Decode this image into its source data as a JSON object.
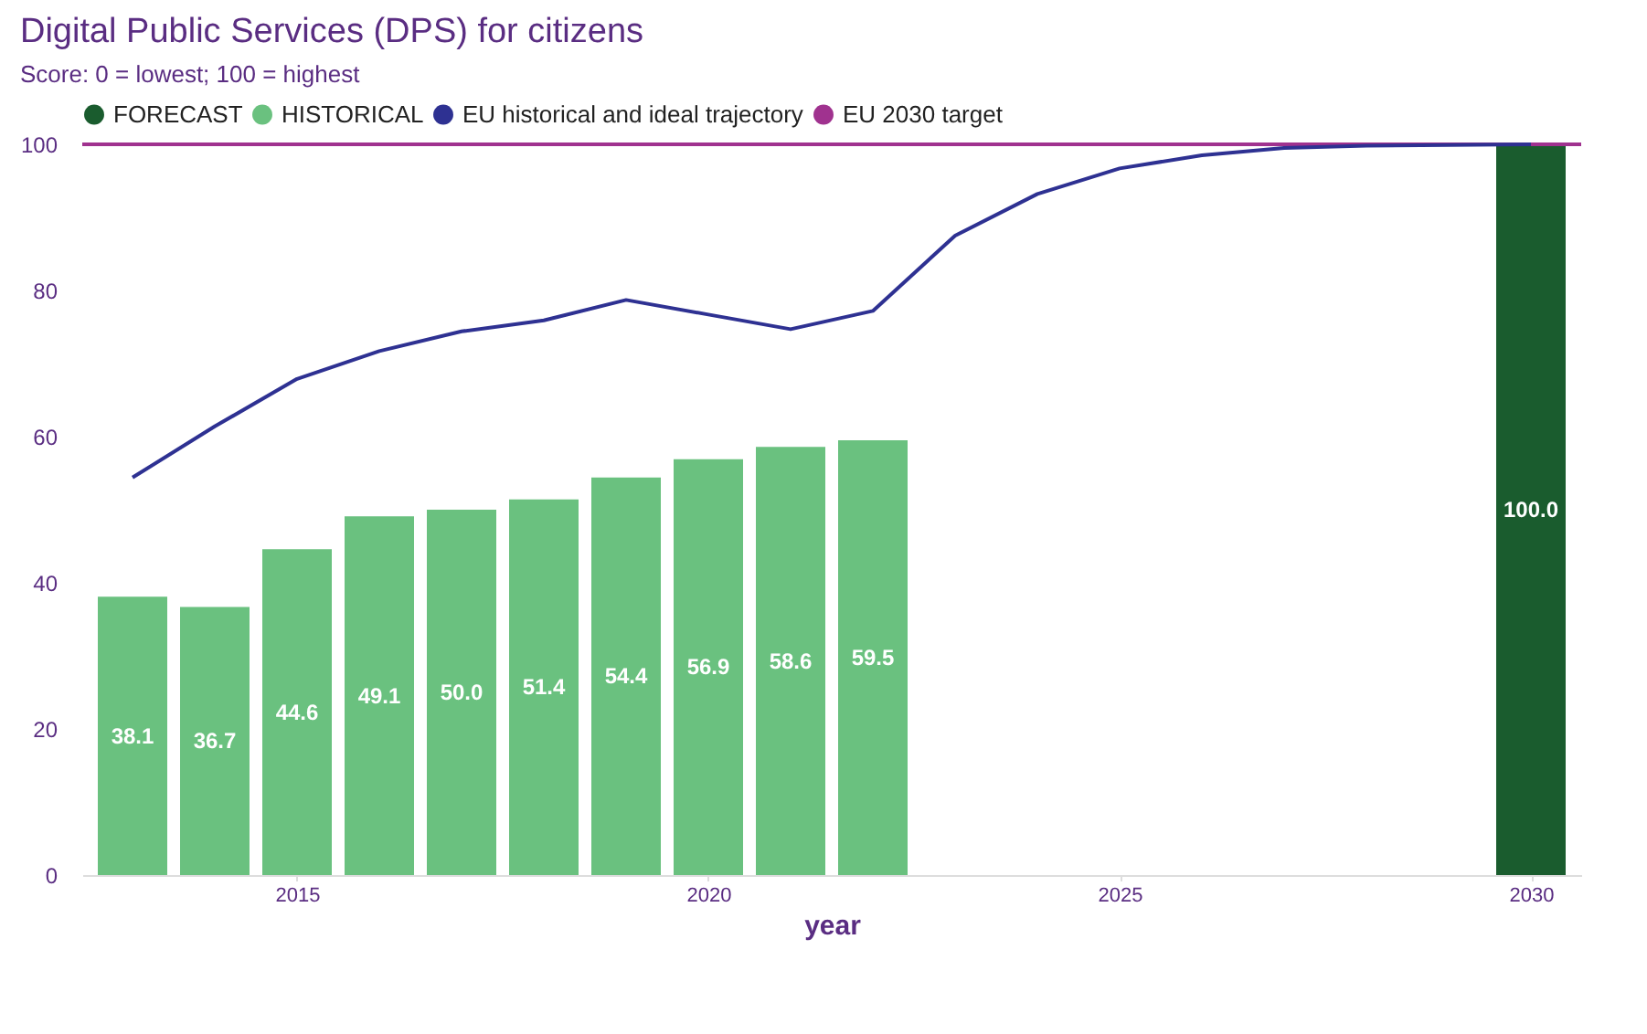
{
  "chart_data": {
    "type": "bar",
    "title": "Digital Public Services (DPS) for citizens",
    "subtitle": "Score: 0 = lowest; 100 = highest",
    "xlabel": "year",
    "xlim": [
      2012.5,
      2030.5
    ],
    "xticks": [
      2015,
      2020,
      2025,
      2030
    ],
    "ylim": [
      0,
      100
    ],
    "yticks": [
      0,
      20,
      40,
      60,
      80,
      100
    ],
    "grid": false,
    "legend": "top left",
    "series": [
      {
        "name": "FORECAST",
        "color": "#1a5c2e",
        "x": [
          2030
        ],
        "values": [
          100
        ],
        "value_labels": [
          "100.0"
        ]
      },
      {
        "name": "HISTORICAL",
        "color": "#6ac17f",
        "x": [
          2013,
          2014,
          2015,
          2016,
          2017,
          2018,
          2019,
          2020,
          2021,
          2022
        ],
        "values": [
          38.1,
          36.7,
          44.6,
          49.1,
          50.0,
          51.4,
          54.4,
          56.9,
          58.6,
          59.5
        ],
        "value_labels": [
          "38.1",
          "36.7",
          "44.6",
          "49.1",
          "50.0",
          "51.4",
          "54.4",
          "56.9",
          "58.6",
          "59.5"
        ]
      },
      {
        "name": "EU historical and ideal trajectory",
        "type": "line",
        "color": "#2e3192",
        "x": [
          2013,
          2014,
          2015,
          2016,
          2017,
          2018,
          2019,
          2020,
          2021,
          2022,
          2023,
          2024,
          2025,
          2026,
          2027,
          2028,
          2029,
          2030
        ],
        "values": [
          54.4,
          61.4,
          67.9,
          71.7,
          74.4,
          75.9,
          78.7,
          76.7,
          74.7,
          77.2,
          87.5,
          93.2,
          96.7,
          98.5,
          99.5,
          99.8,
          99.9,
          100
        ]
      }
    ],
    "ref_lines": [
      {
        "axis": "y",
        "value": 100,
        "label": "EU 2030 target",
        "color": "#a0328f"
      }
    ]
  }
}
